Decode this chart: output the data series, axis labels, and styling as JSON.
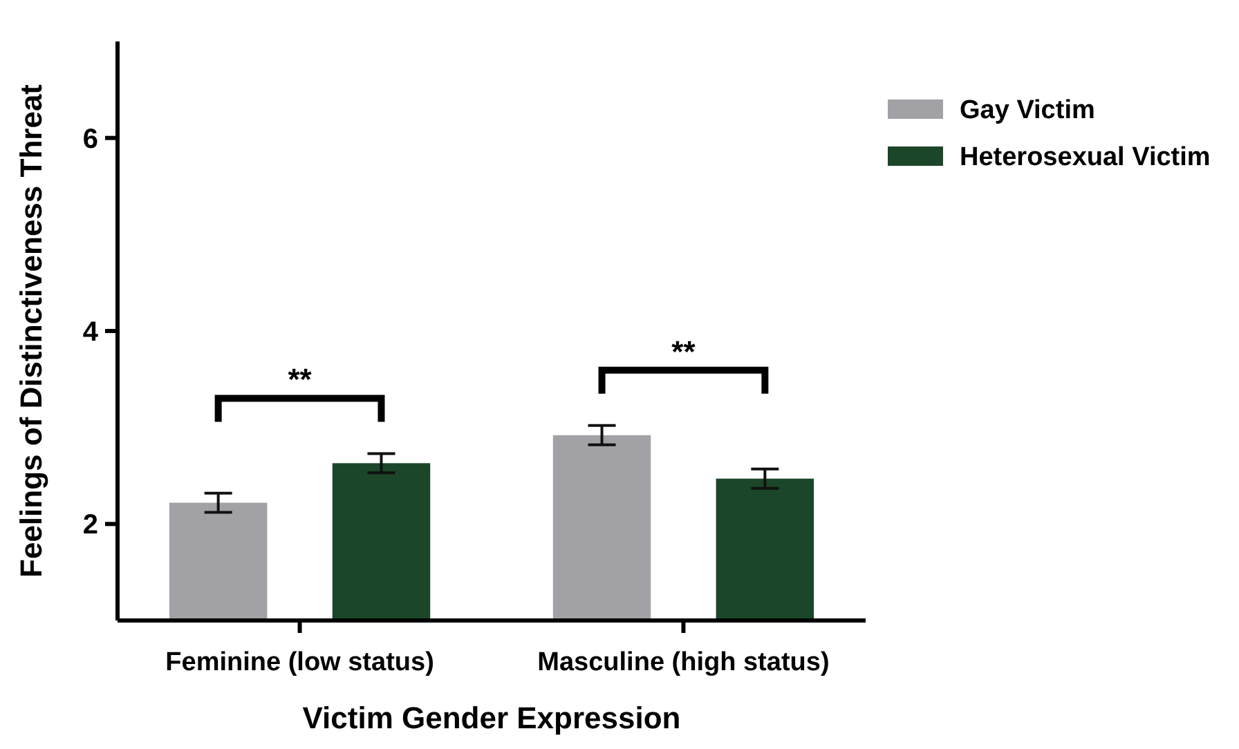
{
  "chart_data": {
    "type": "bar",
    "xlabel": "Victim Gender Expression",
    "ylabel": "Feelings of Distinctiveness Threat",
    "categories": [
      "Feminine (low status)",
      "Masculine (high status)"
    ],
    "series": [
      {
        "name": "Gay Victim",
        "color": "#a2a1a6",
        "values": [
          2.22,
          2.92
        ],
        "errors": [
          0.1,
          0.1
        ]
      },
      {
        "name": "Heterosexual Victim",
        "color": "#1c4629",
        "values": [
          2.63,
          2.47
        ],
        "errors": [
          0.1,
          0.1
        ]
      }
    ],
    "ylim": [
      1,
      7
    ],
    "yticks": [
      2,
      4,
      6
    ],
    "grid": false,
    "legend": "top right",
    "annotations": [
      "**",
      "**"
    ]
  }
}
